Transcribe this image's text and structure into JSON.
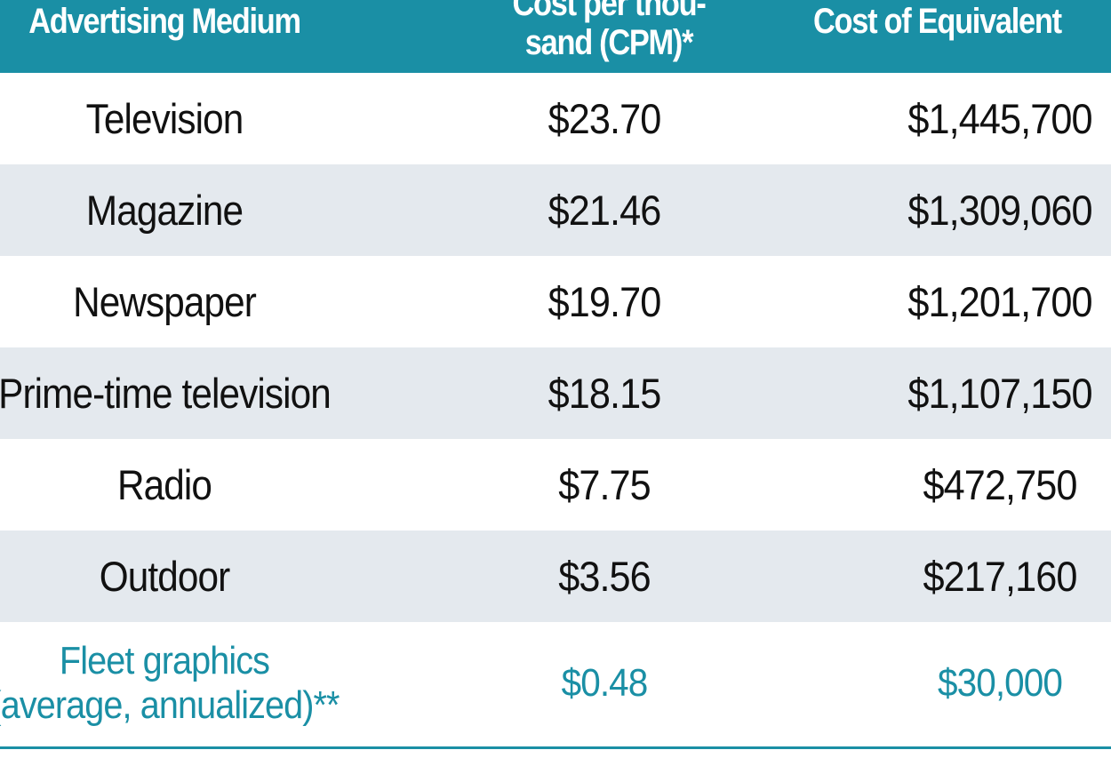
{
  "colors": {
    "header_bg": "#1a8fa5",
    "header_text": "#ffffff",
    "alt_row_bg": "#e4e9ee",
    "highlight_text": "#1a8fa5"
  },
  "chart_data": {
    "type": "table",
    "columns": [
      "Advertising Medium",
      "Cost per thou- sand (CPM)*",
      "Cost of Equivalent"
    ],
    "rows": [
      {
        "medium": [
          "Television"
        ],
        "cpm": "$23.70",
        "cost": "$1,445,700"
      },
      {
        "medium": [
          "Magazine"
        ],
        "cpm": "$21.46",
        "cost": "$1,309,060"
      },
      {
        "medium": [
          "Newspaper"
        ],
        "cpm": "$19.70",
        "cost": "$1,201,700"
      },
      {
        "medium": [
          "Prime-time television"
        ],
        "cpm": "$18.15",
        "cost": "$1,107,150"
      },
      {
        "medium": [
          "Radio"
        ],
        "cpm": "$7.75",
        "cost": "$472,750"
      },
      {
        "medium": [
          "Outdoor"
        ],
        "cpm": "$3.56",
        "cost": "$217,160"
      },
      {
        "medium": [
          "Fleet graphics",
          "(average, annualized)**"
        ],
        "cpm": "$0.48",
        "cost": "$30,000",
        "highlight": true
      }
    ]
  }
}
